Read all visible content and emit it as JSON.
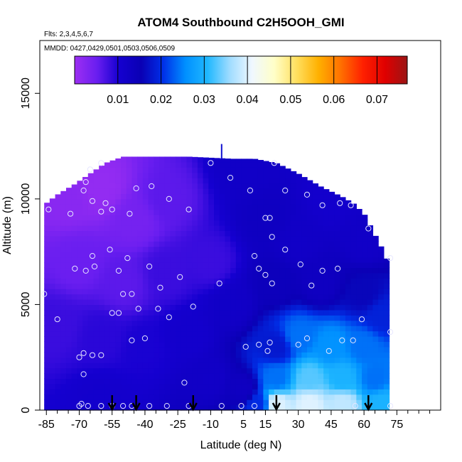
{
  "chart_data": {
    "type": "heatmap",
    "title": "ATOM4 Southbound C2H5OOH_GMI",
    "flights_note": "Flts: 2,3,4,5,6,7",
    "dates_note": "MMDD: 0427,0429,0501,0503,0506,0509",
    "xlabel": "Latitude (deg N)",
    "ylabel": "Altitude (m)",
    "xlim": [
      -88,
      95
    ],
    "ylim": [
      0,
      17500
    ],
    "x_ticks": [
      -85,
      -70,
      -55,
      -40,
      -25,
      -10,
      5,
      15,
      30,
      45,
      60,
      75
    ],
    "x_tick_labels": [
      "-85",
      "-70",
      "-55",
      "-40",
      "-25",
      "-10",
      "5",
      "15",
      "30",
      "45",
      "60",
      "75"
    ],
    "y_ticks": [
      0,
      5000,
      10000,
      15000
    ],
    "y_tick_labels": [
      "0",
      "5000",
      "10000",
      "15000"
    ],
    "colorbar": {
      "min": 0.0,
      "max": 0.077,
      "ticks": [
        0.01,
        0.02,
        0.03,
        0.04,
        0.05,
        0.06,
        0.07
      ],
      "tick_labels": [
        "0.01",
        "0.02",
        "0.03",
        "0.04",
        "0.05",
        "0.06",
        "0.07"
      ],
      "colors": [
        "#9d2ff2",
        "#6a1ef0",
        "#1500d0",
        "#0a00b4",
        "#0030e8",
        "#0090ff",
        "#20b8ff",
        "#a0dcff",
        "#f0f8ff",
        "#ffffc8",
        "#ffe060",
        "#ffb000",
        "#ff7000",
        "#ff2000",
        "#e00000",
        "#9a1515"
      ]
    },
    "domain_bounds": [
      {
        "lat": -86,
        "alt_max": 4000
      },
      {
        "lat": -85,
        "alt_max": 9800
      },
      {
        "lat": -80,
        "alt_max": 10200
      },
      {
        "lat": -72,
        "alt_max": 10700
      },
      {
        "lat": -65,
        "alt_max": 11200
      },
      {
        "lat": -58,
        "alt_max": 11700
      },
      {
        "lat": -50,
        "alt_max": 12000
      },
      {
        "lat": -40,
        "alt_max": 12000
      },
      {
        "lat": -20,
        "alt_max": 12000
      },
      {
        "lat": 0,
        "alt_max": 11900
      },
      {
        "lat": 10,
        "alt_max": 11900
      },
      {
        "lat": 20,
        "alt_max": 11700
      },
      {
        "lat": 30,
        "alt_max": 11200
      },
      {
        "lat": 40,
        "alt_max": 10600
      },
      {
        "lat": 50,
        "alt_max": 10100
      },
      {
        "lat": 55,
        "alt_max": 9800
      },
      {
        "lat": 60,
        "alt_max": 9300
      },
      {
        "lat": 64,
        "alt_max": 8500
      },
      {
        "lat": 68,
        "alt_max": 7700
      },
      {
        "lat": 71,
        "alt_max": 7000
      }
    ],
    "control_points": [
      {
        "lat": -75,
        "alt": 10000,
        "value": 0.002
      },
      {
        "lat": -60,
        "alt": 10500,
        "value": 0.001
      },
      {
        "lat": -45,
        "alt": 9000,
        "value": 0.004
      },
      {
        "lat": -30,
        "alt": 10000,
        "value": 0.006
      },
      {
        "lat": -70,
        "alt": 7000,
        "value": 0.005
      },
      {
        "lat": -50,
        "alt": 6000,
        "value": 0.006
      },
      {
        "lat": -30,
        "alt": 6500,
        "value": 0.008
      },
      {
        "lat": -10,
        "alt": 7000,
        "value": 0.008
      },
      {
        "lat": -80,
        "alt": 4000,
        "value": 0.008
      },
      {
        "lat": -60,
        "alt": 3500,
        "value": 0.009
      },
      {
        "lat": -40,
        "alt": 3000,
        "value": 0.01
      },
      {
        "lat": -20,
        "alt": 3500,
        "value": 0.011
      },
      {
        "lat": -10,
        "alt": 1500,
        "value": 0.012
      },
      {
        "lat": -60,
        "alt": 500,
        "value": 0.011
      },
      {
        "lat": 5,
        "alt": 11500,
        "value": 0.012
      },
      {
        "lat": 0,
        "alt": 5000,
        "value": 0.012
      },
      {
        "lat": 5,
        "alt": 1000,
        "value": 0.013
      },
      {
        "lat": 15,
        "alt": 9000,
        "value": 0.013
      },
      {
        "lat": 20,
        "alt": 6000,
        "value": 0.014
      },
      {
        "lat": 30,
        "alt": 8000,
        "value": 0.012
      },
      {
        "lat": 45,
        "alt": 10000,
        "value": 0.011
      },
      {
        "lat": 60,
        "alt": 8000,
        "value": 0.012
      },
      {
        "lat": 40,
        "alt": 6000,
        "value": 0.013
      },
      {
        "lat": 60,
        "alt": 5500,
        "value": 0.016
      },
      {
        "lat": 68,
        "alt": 4500,
        "value": 0.019
      },
      {
        "lat": 20,
        "alt": 3000,
        "value": 0.018
      },
      {
        "lat": 30,
        "alt": 3500,
        "value": 0.024
      },
      {
        "lat": 45,
        "alt": 3000,
        "value": 0.026
      },
      {
        "lat": 60,
        "alt": 3000,
        "value": 0.024
      },
      {
        "lat": 20,
        "alt": 1500,
        "value": 0.024
      },
      {
        "lat": 35,
        "alt": 1500,
        "value": 0.033
      },
      {
        "lat": 50,
        "alt": 1500,
        "value": 0.03
      },
      {
        "lat": 65,
        "alt": 1500,
        "value": 0.024
      },
      {
        "lat": 20,
        "alt": 300,
        "value": 0.04
      },
      {
        "lat": 35,
        "alt": 300,
        "value": 0.04
      },
      {
        "lat": 50,
        "alt": 300,
        "value": 0.038
      },
      {
        "lat": 68,
        "alt": 300,
        "value": 0.03
      },
      {
        "lat": 12,
        "alt": 300,
        "value": 0.02
      }
    ],
    "samples": [
      [
        -84,
        9500
      ],
      [
        -74,
        9300
      ],
      [
        -68,
        10400
      ],
      [
        -67,
        10800
      ],
      [
        -65,
        11400
      ],
      [
        -60,
        11700
      ],
      [
        -44,
        10500
      ],
      [
        -37,
        10600
      ],
      [
        -29,
        10000
      ],
      [
        -20,
        9500
      ],
      [
        -55,
        9500
      ],
      [
        -58,
        9800
      ],
      [
        -60,
        9400
      ],
      [
        -64,
        9900
      ],
      [
        -47,
        9300
      ],
      [
        -10,
        11700
      ],
      [
        -1,
        11000
      ],
      [
        8,
        10400
      ],
      [
        19,
        11700
      ],
      [
        24,
        10400
      ],
      [
        34,
        10200
      ],
      [
        41,
        9700
      ],
      [
        49,
        9800
      ],
      [
        54,
        9700
      ],
      [
        62,
        8600
      ],
      [
        15,
        9100
      ],
      [
        17,
        9100
      ],
      [
        18,
        8200
      ],
      [
        10,
        7300
      ],
      [
        24,
        7600
      ],
      [
        -64,
        7300
      ],
      [
        -72,
        6700
      ],
      [
        -67,
        6600
      ],
      [
        -63,
        6800
      ],
      [
        -56,
        7600
      ],
      [
        -52,
        6600
      ],
      [
        -48,
        7200
      ],
      [
        -38,
        6800
      ],
      [
        -33,
        5800
      ],
      [
        -24,
        6300
      ],
      [
        -6,
        6000
      ],
      [
        -50,
        5500
      ],
      [
        -46,
        5500
      ],
      [
        -43,
        4800
      ],
      [
        -52,
        4600
      ],
      [
        -55,
        4600
      ],
      [
        -34,
        4800
      ],
      [
        -29,
        4400
      ],
      [
        -18,
        4900
      ],
      [
        -80,
        4300
      ],
      [
        -86,
        5500
      ],
      [
        12,
        6700
      ],
      [
        15,
        6400
      ],
      [
        18,
        6000
      ],
      [
        31,
        6900
      ],
      [
        36,
        5900
      ],
      [
        41,
        6600
      ],
      [
        48,
        6700
      ],
      [
        59,
        4300
      ],
      [
        72,
        7200
      ],
      [
        72,
        3700
      ],
      [
        -46,
        3300
      ],
      [
        -40,
        3400
      ],
      [
        -70,
        2500
      ],
      [
        -68,
        2700
      ],
      [
        -64,
        2600
      ],
      [
        -60,
        2600
      ],
      [
        -68,
        1700
      ],
      [
        -69,
        300
      ],
      [
        -70,
        200
      ],
      [
        -66,
        200
      ],
      [
        -60,
        200
      ],
      [
        -55,
        200
      ],
      [
        -50,
        200
      ],
      [
        -46,
        200
      ],
      [
        -38,
        200
      ],
      [
        -30,
        200
      ],
      [
        -20,
        200
      ],
      [
        -22,
        1300
      ],
      [
        -5,
        200
      ],
      [
        4,
        200
      ],
      [
        10,
        200
      ],
      [
        6,
        3000
      ],
      [
        12,
        3100
      ],
      [
        17,
        3200
      ],
      [
        16,
        2800
      ],
      [
        30,
        3100
      ],
      [
        34,
        3400
      ],
      [
        44,
        2800
      ],
      [
        50,
        3300
      ],
      [
        55,
        3300
      ],
      [
        72,
        200
      ],
      [
        56,
        200
      ]
    ],
    "arrow_latitudes": [
      -55,
      -44,
      -18,
      20,
      62
    ],
    "spike": {
      "lat": -5,
      "alt_min": 11900,
      "alt_max": 12600
    }
  }
}
